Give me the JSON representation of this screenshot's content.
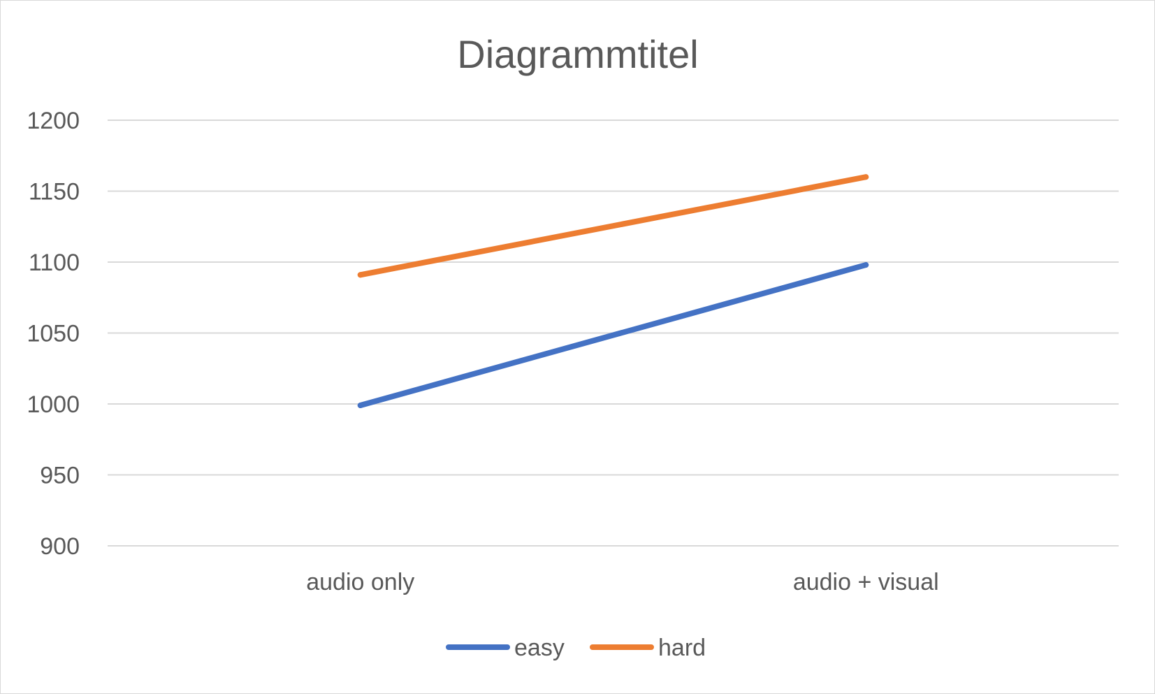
{
  "chart_data": {
    "type": "line",
    "title": "Diagrammtitel",
    "xlabel": "",
    "ylabel": "",
    "categories": [
      "audio only",
      "audio + visual"
    ],
    "series": [
      {
        "name": "easy",
        "values": [
          999,
          1098
        ],
        "color": "#4472c4"
      },
      {
        "name": "hard",
        "values": [
          1091,
          1160
        ],
        "color": "#ed7d31"
      }
    ],
    "ylim": [
      900,
      1200
    ],
    "yticks": [
      900,
      950,
      1000,
      1050,
      1100,
      1150,
      1200
    ],
    "grid": true,
    "legend_position": "bottom",
    "gridline_color": "#d9d9d9"
  }
}
